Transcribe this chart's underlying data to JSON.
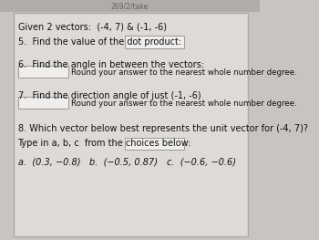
{
  "header": "269/2/take",
  "given_line": "Given 2 vectors:  (-4, 7) & (-1, -6)",
  "q5_label": "5.  Find the value of the dot product:",
  "q6_label": "6.  Find the angle in between the vectors:",
  "q6_sub": "Round your answer to the nearest whole number degree.",
  "q7_label": "7.  Find the direction angle of just (-1, -6)",
  "q7_sub": "Round your answer to the nearest whole number degree.",
  "q8_label": "8. Which vector below best represents the unit vector for (-4, 7)?",
  "q8_type": "Type in a, b, c  from the choices below:",
  "choice_a": "a.  (0.3, −0.8)",
  "choice_b": "b.  (−0.5, 0.87)",
  "choice_c": "c.  (−0.6, −0.6)",
  "outer_bg": "#c8c4c0",
  "inner_bg": "#dedad6",
  "box_fill": "#e8e4e0",
  "box_edge": "#999999",
  "text_color": "#111111",
  "header_color": "#666666",
  "border_color": "#aaaaaa"
}
